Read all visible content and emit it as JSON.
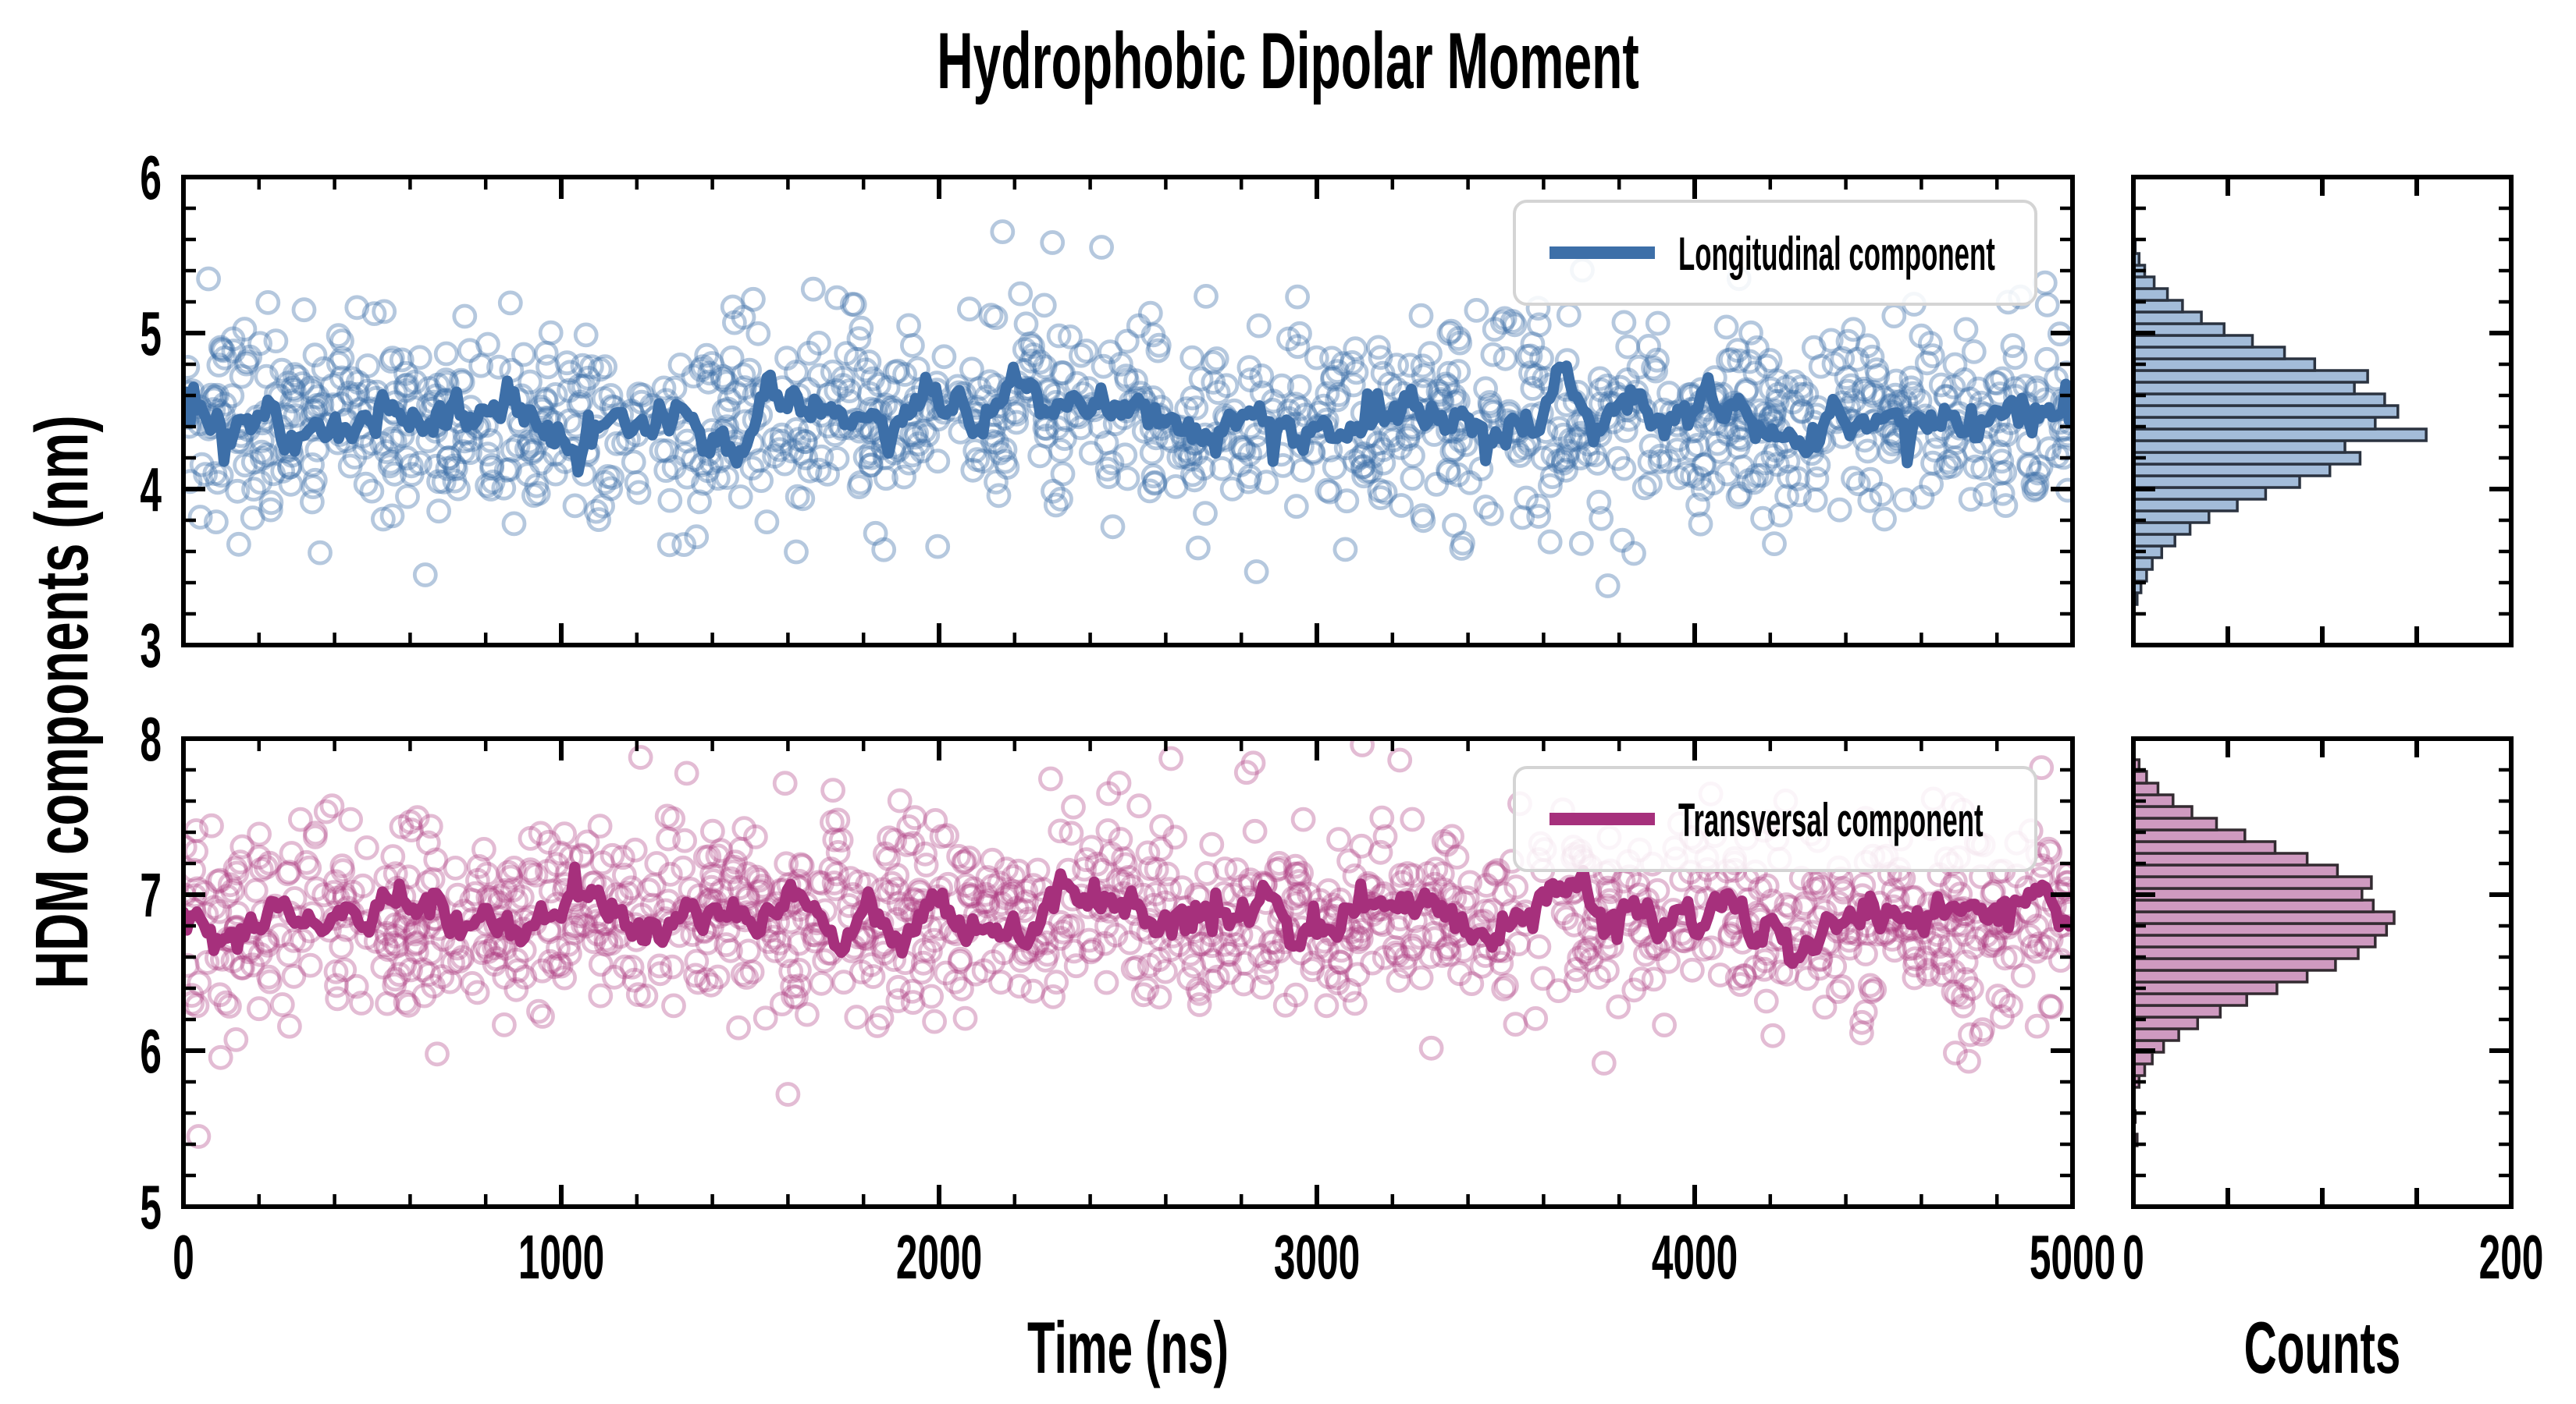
{
  "chart_data": {
    "type": "scatter",
    "title": "Hydrophobic Dipolar Moment",
    "y_axis_label": "HDM components (nm)",
    "x_axis": {
      "label": "Time (ns)",
      "range": [
        0,
        5000
      ],
      "major_ticks": [
        0,
        1000,
        2000,
        3000,
        4000,
        5000
      ],
      "minor_step": 200
    },
    "counts_axis": {
      "label": "Counts",
      "range": [
        0,
        200
      ],
      "inner_ticks": [
        50,
        100,
        150
      ],
      "edge_labels": [
        "0",
        "200"
      ]
    },
    "panels": [
      {
        "id": "longitudinal",
        "legend": "Longitudinal component",
        "y_range": [
          3,
          6
        ],
        "y_major_ticks": [
          3,
          4,
          5,
          6
        ],
        "y_minor_step": 0.2,
        "line_color": "#3d6fa8",
        "scatter_color": "#3d6fa8",
        "scatter_alpha": 0.38,
        "hist_fill": "#a3bcd9",
        "hist_edge": "#2b3340",
        "scatter": {
          "n": 1250,
          "seed": 20231,
          "mean": 4.45,
          "sigma": 0.32
        },
        "mean_line": {
          "seed": 911,
          "phi": 0.85,
          "step_sigma": 0.055,
          "n": 560,
          "spike_prob": 0.03,
          "spike_size": 0.13
        },
        "outliers": [
          [
            3770,
            3.38
          ],
          [
            640,
            3.45
          ],
          [
            2840,
            3.47
          ],
          [
            2300,
            5.58
          ],
          [
            2430,
            5.55
          ]
        ],
        "hist": {
          "bin_start": 3.26,
          "bin_width": 0.075,
          "counts": [
            2,
            4,
            7,
            10,
            15,
            22,
            30,
            40,
            55,
            70,
            88,
            104,
            120,
            112,
            155,
            128,
            140,
            133,
            117,
            124,
            96,
            80,
            63,
            48,
            36,
            26,
            18,
            11,
            6,
            3,
            1
          ]
        }
      },
      {
        "id": "transversal",
        "legend": "Transversal component",
        "y_range": [
          5,
          8
        ],
        "y_major_ticks": [
          5,
          6,
          7,
          8
        ],
        "y_minor_step": 0.2,
        "line_color": "#a6307c",
        "scatter_color": "#ad3a82",
        "scatter_alpha": 0.34,
        "hist_fill": "#cf9ac0",
        "hist_edge": "#332b31",
        "scatter": {
          "n": 1250,
          "seed": 5150,
          "mean": 6.86,
          "sigma": 0.32
        },
        "mean_line": {
          "seed": 414,
          "phi": 0.85,
          "step_sigma": 0.055,
          "n": 560,
          "spike_prob": 0.03,
          "spike_size": 0.13
        },
        "outliers": [
          [
            1600,
            5.72
          ],
          [
            40,
            5.45
          ],
          [
            3120,
            7.96
          ],
          [
            3760,
            5.92
          ],
          [
            1210,
            7.88
          ]
        ],
        "hist": {
          "bin_start": 5.39,
          "bin_width": 0.075,
          "counts": [
            2,
            0,
            1,
            0,
            0,
            3,
            6,
            10,
            16,
            24,
            34,
            46,
            60,
            76,
            92,
            107,
            119,
            128,
            134,
            138,
            127,
            121,
            126,
            108,
            92,
            75,
            59,
            44,
            31,
            21,
            13,
            7,
            3
          ]
        }
      }
    ],
    "layout_hints": {
      "grid": "off",
      "legend_position": "upper right inside plot",
      "tick_direction": "in",
      "frame_color": "#000000"
    }
  }
}
